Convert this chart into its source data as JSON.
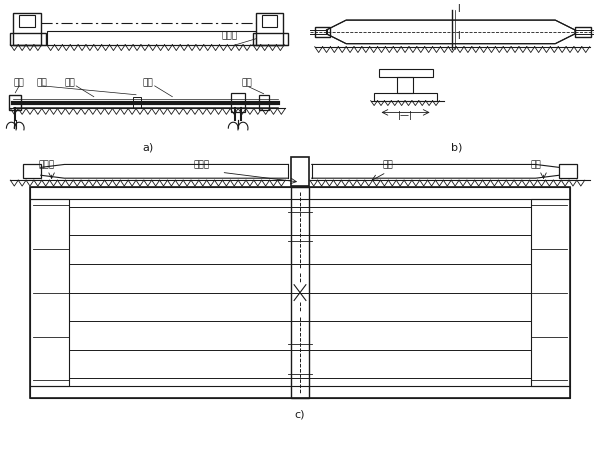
{
  "bg_color": "#ffffff",
  "line_color": "#1a1a1a",
  "fig_width": 6.0,
  "fig_height": 4.5,
  "dpi": 100,
  "labels": {
    "a": "a)",
    "b": "b)",
    "c": "c)",
    "hengja": "横架",
    "zhijia": "支架",
    "lijin": "力筋",
    "taimian": "台面",
    "dingweiban": "定位板",
    "jiaju": "夹具",
    "chenglijia": "承力架",
    "diban": "底板"
  }
}
